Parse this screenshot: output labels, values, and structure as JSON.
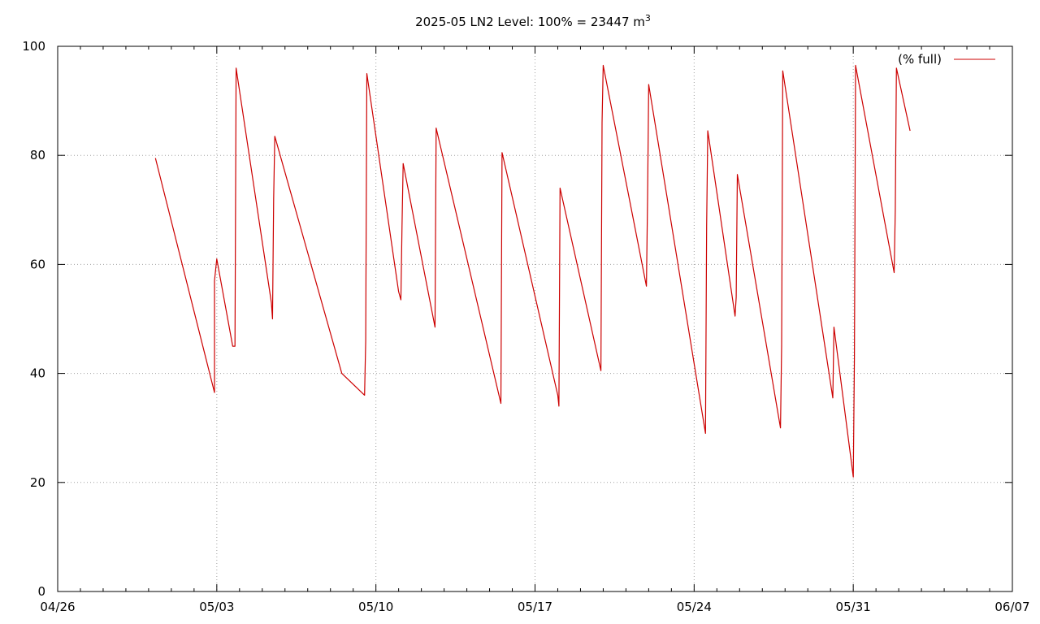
{
  "chart_data": {
    "type": "line",
    "title": "2025-05 LN2 Level: 100% = 23447 m",
    "title_superscript": "3",
    "xlabel": "",
    "ylabel": "",
    "xlim": [
      0,
      42
    ],
    "ylim": [
      0,
      100
    ],
    "x_ticks": [
      {
        "value": 0,
        "label": "04/26"
      },
      {
        "value": 7,
        "label": "05/03"
      },
      {
        "value": 14,
        "label": "05/10"
      },
      {
        "value": 21,
        "label": "05/17"
      },
      {
        "value": 28,
        "label": "05/24"
      },
      {
        "value": 35,
        "label": "05/31"
      },
      {
        "value": 42,
        "label": "06/07"
      }
    ],
    "y_ticks": [
      0,
      20,
      40,
      60,
      80,
      100
    ],
    "grid": true,
    "legend": "top-right",
    "colors": {
      "series": "#cc0000",
      "grid": "#a0a0a0",
      "axis": "#000000"
    },
    "series": [
      {
        "name": "(% full)",
        "points": [
          [
            4.3,
            79.5
          ],
          [
            6.9,
            36.5
          ],
          [
            6.9,
            57
          ],
          [
            7.0,
            61
          ],
          [
            7.7,
            45
          ],
          [
            7.8,
            45
          ],
          [
            7.85,
            96
          ],
          [
            9.4,
            53
          ],
          [
            9.45,
            50
          ],
          [
            9.5,
            72
          ],
          [
            9.55,
            83.5
          ],
          [
            12.5,
            40
          ],
          [
            13.5,
            36
          ],
          [
            13.55,
            46
          ],
          [
            13.6,
            95
          ],
          [
            15.0,
            55
          ],
          [
            15.1,
            53.5
          ],
          [
            15.15,
            67
          ],
          [
            15.2,
            78.5
          ],
          [
            16.6,
            48.5
          ],
          [
            16.65,
            85
          ],
          [
            19.5,
            34.5
          ],
          [
            19.55,
            80.5
          ],
          [
            22.0,
            36
          ],
          [
            22.05,
            34
          ],
          [
            22.1,
            74
          ],
          [
            23.9,
            40.5
          ],
          [
            23.95,
            86
          ],
          [
            24.0,
            96.5
          ],
          [
            25.9,
            56
          ],
          [
            25.95,
            72
          ],
          [
            26.0,
            93
          ],
          [
            28.5,
            29
          ],
          [
            28.55,
            67
          ],
          [
            28.6,
            84.5
          ],
          [
            29.8,
            50.5
          ],
          [
            29.85,
            54
          ],
          [
            29.9,
            76.5
          ],
          [
            31.8,
            30
          ],
          [
            31.85,
            45
          ],
          [
            31.9,
            95.5
          ],
          [
            34.1,
            35.5
          ],
          [
            34.15,
            48.5
          ],
          [
            35.0,
            21
          ],
          [
            35.05,
            43
          ],
          [
            35.1,
            96.5
          ],
          [
            36.8,
            58.5
          ],
          [
            36.85,
            70
          ],
          [
            36.9,
            96
          ],
          [
            37.5,
            84.5
          ]
        ]
      }
    ]
  }
}
